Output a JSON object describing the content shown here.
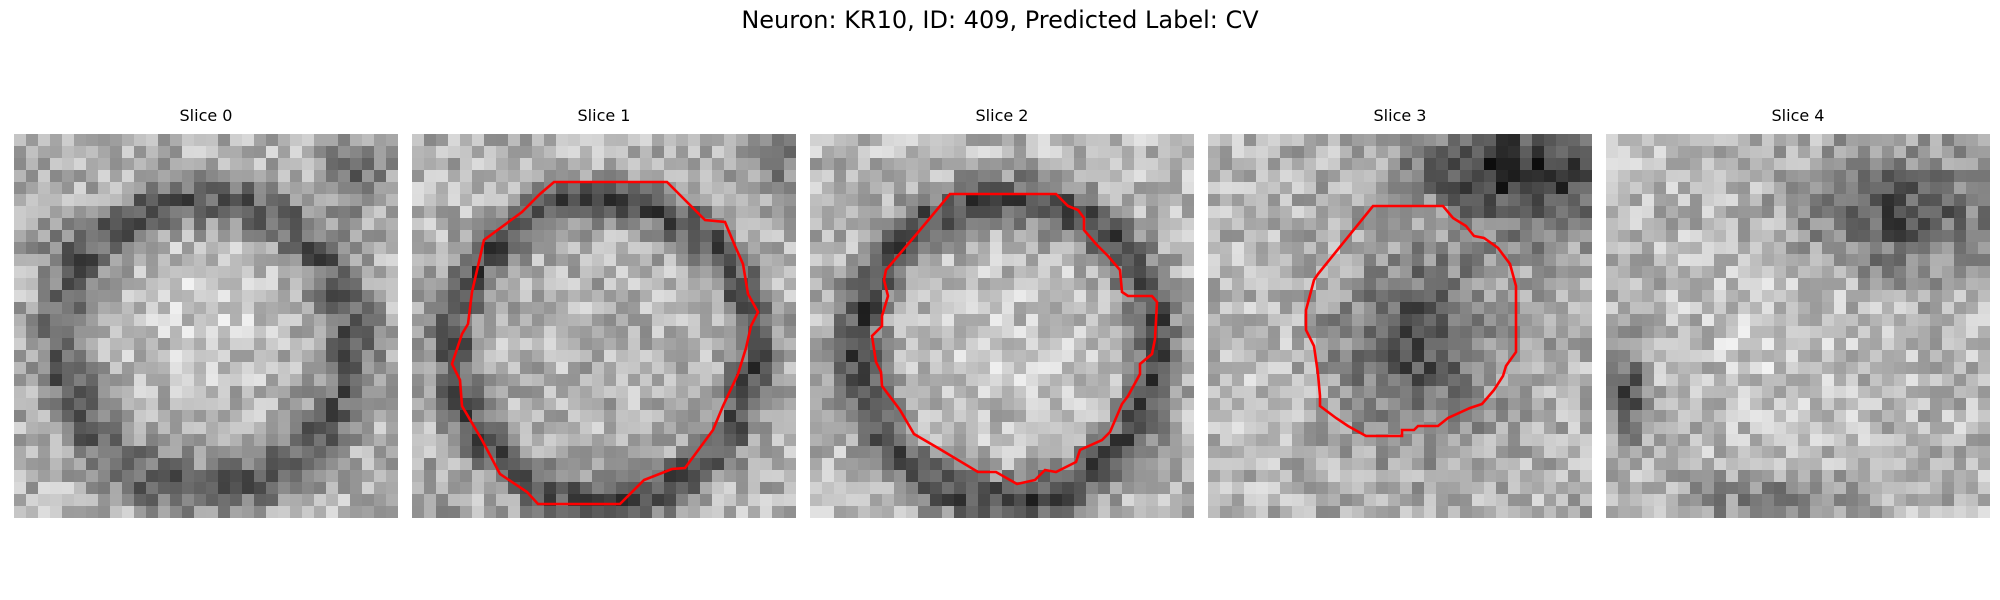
{
  "figure": {
    "title": "Neuron: KR10, ID: 409, Predicted Label: CV"
  },
  "slices": [
    {
      "title": "Slice 0",
      "has_contour": false
    },
    {
      "title": "Slice 1",
      "has_contour": true
    },
    {
      "title": "Slice 2",
      "has_contour": true
    },
    {
      "title": "Slice 3",
      "has_contour": true
    },
    {
      "title": "Slice 4",
      "has_contour": false
    }
  ],
  "colors": {
    "contour": "#ff0000",
    "background": "#ffffff"
  }
}
